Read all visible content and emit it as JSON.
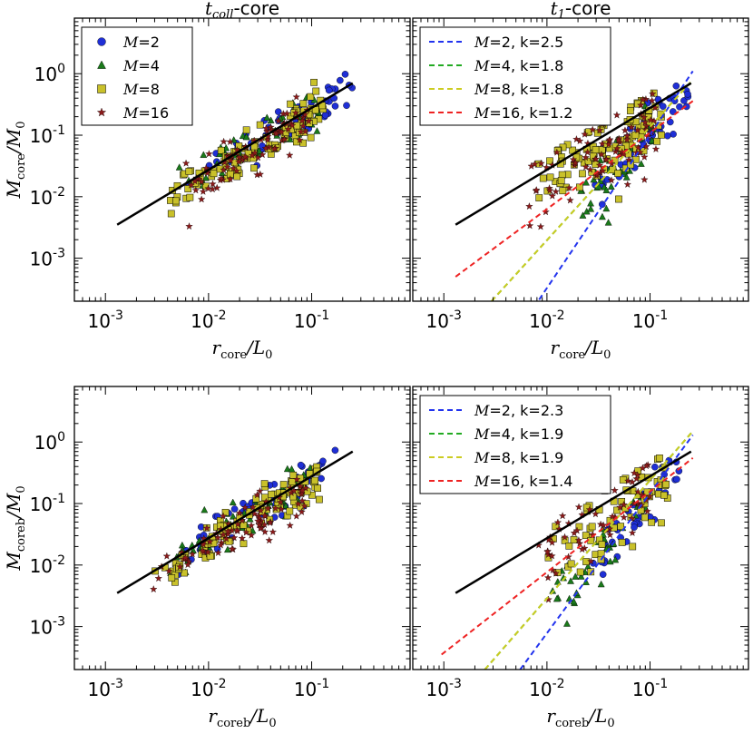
{
  "figure": {
    "colors": {
      "M2": "#1f2fd6",
      "M4": "#1a7a1a",
      "M8": "#c9c12a",
      "M16": "#8b1a1a",
      "fit_M2": "#2233ee",
      "fit_M4": "#22aa22",
      "fit_M8": "#cccc22",
      "fit_M16": "#ee2222",
      "fit_ref": "#000000"
    }
  },
  "chart_data": [
    {
      "type": "scatter",
      "panel": "top-left",
      "title_main": "t",
      "title_sub": "coll",
      "title_suffix": "-core",
      "xlabel_main": "r",
      "xlabel_sub": "core",
      "xlabel_rest": "/L",
      "xlabel_rest_sub": "0",
      "ylabel_main": "M",
      "ylabel_sub": "core",
      "ylabel_rest": "/M",
      "ylabel_rest_sub": "0",
      "xscale": "log",
      "yscale": "log",
      "xlim": [
        0.0005,
        0.9
      ],
      "ylim": [
        0.0002,
        8
      ],
      "xticks": [
        {
          "base": "10",
          "exp": "-3"
        },
        {
          "base": "10",
          "exp": "-2"
        },
        {
          "base": "10",
          "exp": "-1"
        }
      ],
      "yticks": [
        {
          "base": "10",
          "exp": "-3"
        },
        {
          "base": "10",
          "exp": "-2"
        },
        {
          "base": "10",
          "exp": "-1"
        },
        {
          "base": "10",
          "exp": "0"
        }
      ],
      "xtick_values": [
        0.001,
        0.01,
        0.1
      ],
      "ytick_values": [
        0.001,
        0.01,
        0.1,
        1
      ],
      "legend_position": "upper-left",
      "legend": [
        {
          "label": "M=2",
          "marker": "circle",
          "color_key": "M2"
        },
        {
          "label": "M=4",
          "marker": "triangle",
          "color_key": "M4"
        },
        {
          "label": "M=8",
          "marker": "square",
          "color_key": "M8"
        },
        {
          "label": "M=16",
          "marker": "star",
          "color_key": "M16"
        }
      ],
      "reference_line": {
        "x": [
          0.0013,
          0.25
        ],
        "y": [
          0.0035,
          0.7
        ]
      },
      "fit_lines": [],
      "scatter_series": [
        {
          "name": "M=2",
          "marker": "circle",
          "color_key": "M2",
          "x_range": [
            0.006,
            0.25
          ],
          "cloud": "tight",
          "n": 55
        },
        {
          "name": "M=4",
          "marker": "triangle",
          "color_key": "M4",
          "x_range": [
            0.005,
            0.12
          ],
          "cloud": "tight",
          "n": 60
        },
        {
          "name": "M=8",
          "marker": "square",
          "color_key": "M8",
          "x_range": [
            0.004,
            0.13
          ],
          "cloud": "tight",
          "n": 110
        },
        {
          "name": "M=16",
          "marker": "star",
          "color_key": "M16",
          "x_range": [
            0.006,
            0.1
          ],
          "cloud": "tight",
          "n": 90
        }
      ]
    },
    {
      "type": "scatter",
      "panel": "top-right",
      "title_main": "t",
      "title_sub": "1",
      "title_suffix": "-core",
      "xlabel_main": "r",
      "xlabel_sub": "core",
      "xlabel_rest": "/L",
      "xlabel_rest_sub": "0",
      "ylabel_main": "",
      "ylabel_sub": "",
      "ylabel_rest": "",
      "ylabel_rest_sub": "",
      "xscale": "log",
      "yscale": "log",
      "xlim": [
        0.0005,
        0.9
      ],
      "ylim": [
        0.0002,
        8
      ],
      "xticks": [
        {
          "base": "10",
          "exp": "-3"
        },
        {
          "base": "10",
          "exp": "-2"
        },
        {
          "base": "10",
          "exp": "-1"
        }
      ],
      "yticks": [],
      "xtick_values": [
        0.001,
        0.01,
        0.1
      ],
      "ytick_values": [
        0.001,
        0.01,
        0.1,
        1
      ],
      "legend_position": "upper-left",
      "legend": [
        {
          "label": "M=2, k=2.5",
          "marker": "dash",
          "color_key": "fit_M2"
        },
        {
          "label": "M=4, k=1.8",
          "marker": "dash",
          "color_key": "fit_M4"
        },
        {
          "label": "M=8, k=1.8",
          "marker": "dash",
          "color_key": "fit_M8"
        },
        {
          "label": "M=16, k=1.2",
          "marker": "dash",
          "color_key": "fit_M16"
        }
      ],
      "reference_line": {
        "x": [
          0.0013,
          0.25
        ],
        "y": [
          0.0035,
          0.7
        ]
      },
      "fit_lines": [
        {
          "name": "M=2",
          "k": 2.5,
          "color_key": "fit_M2",
          "x": [
            0.0075,
            0.26
          ],
          "y": [
            0.00016,
            1.1
          ]
        },
        {
          "name": "M=4",
          "k": 1.8,
          "color_key": "fit_M4",
          "x": [
            0.0029,
            0.26
          ],
          "y": [
            0.0002,
            0.8
          ]
        },
        {
          "name": "M=8",
          "k": 1.8,
          "color_key": "fit_M8",
          "x": [
            0.0029,
            0.26
          ],
          "y": [
            0.0002,
            0.8
          ]
        },
        {
          "name": "M=16",
          "k": 1.2,
          "color_key": "fit_M16",
          "x": [
            0.0013,
            0.26
          ],
          "y": [
            0.0005,
            0.36
          ]
        }
      ],
      "scatter_series": [
        {
          "name": "M=2",
          "marker": "circle",
          "color_key": "M2",
          "x_range": [
            0.025,
            0.25
          ],
          "cloud": "steep",
          "n": 55
        },
        {
          "name": "M=4",
          "marker": "triangle",
          "color_key": "M4",
          "x_range": [
            0.02,
            0.11
          ],
          "cloud": "steep",
          "n": 50
        },
        {
          "name": "M=8",
          "marker": "square",
          "color_key": "M8",
          "x_range": [
            0.008,
            0.13
          ],
          "cloud": "wide",
          "n": 100
        },
        {
          "name": "M=16",
          "marker": "star",
          "color_key": "M16",
          "x_range": [
            0.006,
            0.12
          ],
          "cloud": "wide",
          "n": 90
        }
      ]
    },
    {
      "type": "scatter",
      "panel": "bottom-left",
      "title_main": "",
      "title_sub": "",
      "title_suffix": "",
      "xlabel_main": "r",
      "xlabel_sub": "coreb",
      "xlabel_rest": "/L",
      "xlabel_rest_sub": "0",
      "ylabel_main": "M",
      "ylabel_sub": "coreb",
      "ylabel_rest": "/M",
      "ylabel_rest_sub": "0",
      "xscale": "log",
      "yscale": "log",
      "xlim": [
        0.0005,
        0.9
      ],
      "ylim": [
        0.0002,
        8
      ],
      "xticks": [
        {
          "base": "10",
          "exp": "-3"
        },
        {
          "base": "10",
          "exp": "-2"
        },
        {
          "base": "10",
          "exp": "-1"
        }
      ],
      "yticks": [
        {
          "base": "10",
          "exp": "-3"
        },
        {
          "base": "10",
          "exp": "-2"
        },
        {
          "base": "10",
          "exp": "-1"
        },
        {
          "base": "10",
          "exp": "0"
        }
      ],
      "xtick_values": [
        0.001,
        0.01,
        0.1
      ],
      "ytick_values": [
        0.001,
        0.01,
        0.1,
        1
      ],
      "legend_position": "none",
      "legend": [],
      "reference_line": {
        "x": [
          0.0013,
          0.25
        ],
        "y": [
          0.0035,
          0.7
        ]
      },
      "fit_lines": [],
      "scatter_series": [
        {
          "name": "M=2",
          "marker": "circle",
          "color_key": "M2",
          "x_range": [
            0.005,
            0.17
          ],
          "cloud": "tight",
          "n": 55
        },
        {
          "name": "M=4",
          "marker": "triangle",
          "color_key": "M4",
          "x_range": [
            0.004,
            0.1
          ],
          "cloud": "tight",
          "n": 60
        },
        {
          "name": "M=8",
          "marker": "square",
          "color_key": "M8",
          "x_range": [
            0.0028,
            0.12
          ],
          "cloud": "tight",
          "n": 110
        },
        {
          "name": "M=16",
          "marker": "star",
          "color_key": "M16",
          "x_range": [
            0.0028,
            0.09
          ],
          "cloud": "tight",
          "n": 90
        }
      ]
    },
    {
      "type": "scatter",
      "panel": "bottom-right",
      "title_main": "",
      "title_sub": "",
      "title_suffix": "",
      "xlabel_main": "r",
      "xlabel_sub": "coreb",
      "xlabel_rest": "/L",
      "xlabel_rest_sub": "0",
      "ylabel_main": "",
      "ylabel_sub": "",
      "ylabel_rest": "",
      "ylabel_rest_sub": "",
      "xscale": "log",
      "yscale": "log",
      "xlim": [
        0.0005,
        0.9
      ],
      "ylim": [
        0.0002,
        8
      ],
      "xticks": [
        {
          "base": "10",
          "exp": "-3"
        },
        {
          "base": "10",
          "exp": "-2"
        },
        {
          "base": "10",
          "exp": "-1"
        }
      ],
      "yticks": [],
      "xtick_values": [
        0.001,
        0.01,
        0.1
      ],
      "ytick_values": [
        0.001,
        0.01,
        0.1,
        1
      ],
      "legend_position": "upper-left",
      "legend": [
        {
          "label": "M=2, k=2.3",
          "marker": "dash",
          "color_key": "fit_M2"
        },
        {
          "label": "M=4, k=1.9",
          "marker": "dash",
          "color_key": "fit_M4"
        },
        {
          "label": "M=8, k=1.9",
          "marker": "dash",
          "color_key": "fit_M8"
        },
        {
          "label": "M=16, k=1.4",
          "marker": "dash",
          "color_key": "fit_M16"
        }
      ],
      "reference_line": {
        "x": [
          0.0013,
          0.25
        ],
        "y": [
          0.0035,
          0.7
        ]
      },
      "fit_lines": [
        {
          "name": "M=2",
          "k": 2.3,
          "color_key": "fit_M2",
          "x": [
            0.0055,
            0.26
          ],
          "y": [
            0.0002,
            1.3
          ]
        },
        {
          "name": "M=4",
          "k": 1.9,
          "color_key": "fit_M4",
          "x": [
            0.0025,
            0.26
          ],
          "y": [
            0.0002,
            1.5
          ]
        },
        {
          "name": "M=8",
          "k": 1.9,
          "color_key": "fit_M8",
          "x": [
            0.0025,
            0.26
          ],
          "y": [
            0.0002,
            1.5
          ]
        },
        {
          "name": "M=16",
          "k": 1.4,
          "color_key": "fit_M16",
          "x": [
            0.00095,
            0.26
          ],
          "y": [
            0.00035,
            0.55
          ]
        }
      ],
      "scatter_series": [
        {
          "name": "M=2",
          "marker": "circle",
          "color_key": "M2",
          "x_range": [
            0.02,
            0.2
          ],
          "cloud": "steep",
          "n": 40
        },
        {
          "name": "M=4",
          "marker": "triangle",
          "color_key": "M4",
          "x_range": [
            0.01,
            0.1
          ],
          "cloud": "steep",
          "n": 40
        },
        {
          "name": "M=8",
          "marker": "square",
          "color_key": "M8",
          "x_range": [
            0.008,
            0.15
          ],
          "cloud": "wide",
          "n": 70
        },
        {
          "name": "M=16",
          "marker": "star",
          "color_key": "M16",
          "x_range": [
            0.008,
            0.1
          ],
          "cloud": "wide",
          "n": 60
        }
      ]
    }
  ]
}
